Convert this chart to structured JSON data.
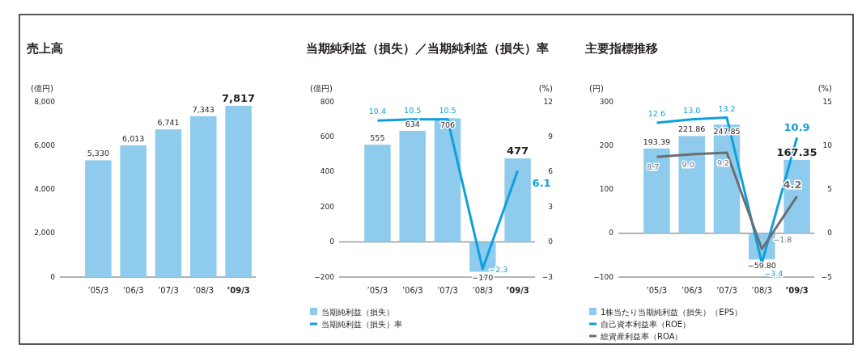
{
  "chart_data": [
    {
      "type": "bar",
      "title": "売上高",
      "ylabel": "(億円)",
      "categories": [
        "’05/3",
        "’06/3",
        "’07/3",
        "’08/3",
        "’09/3"
      ],
      "series": [
        {
          "color": "#8ecbed",
          "values": [
            5330,
            6013,
            6741,
            7343,
            7817
          ],
          "value_labels": [
            "5,330",
            "6,013",
            "6,741",
            "7,343",
            "7,817"
          ]
        }
      ],
      "ylim": [
        0,
        8000
      ],
      "yticks": [
        0,
        {
          "value": 2000,
          "label": "2,000"
        },
        {
          "value": 4000,
          "label": "4,000"
        },
        {
          "value": 6000,
          "label": "6,000"
        },
        {
          "value": 8000,
          "label": "8,000"
        }
      ],
      "grid": false,
      "legend": false
    },
    {
      "type": "bar",
      "title": "当期純利益（損失）／当期純利益（損失）率",
      "ylabel": "(億円)",
      "y2label": "(%)",
      "categories": [
        "’05/3",
        "’06/3",
        "’07/3",
        "’08/3",
        "’09/3"
      ],
      "series": [
        {
          "name": "当期純利益（損失）",
          "color": "#8ecbed",
          "values": [
            555,
            634,
            706,
            -170,
            477
          ],
          "value_labels": [
            "555",
            "634",
            "706",
            "−170",
            "477"
          ]
        },
        {
          "type": "line",
          "name": "当期純利益（損失）率",
          "color": "#0ea0dc",
          "axis": "y2",
          "values": [
            10.4,
            10.5,
            10.5,
            -2.3,
            6.1
          ],
          "value_labels": [
            "10.4",
            "10.5",
            "10.5",
            "−2.3",
            "6.1"
          ]
        }
      ],
      "ylim": [
        -200,
        800
      ],
      "yticks": [
        {
          "value": -200,
          "label": "−200"
        },
        0,
        200,
        400,
        600,
        800
      ],
      "y2lim": [
        -3,
        12
      ],
      "y2ticks": [
        {
          "value": -3,
          "label": "−3"
        },
        0,
        3,
        6,
        9,
        12
      ],
      "ref_lines": [
        {
          "axis": "y",
          "value": 0,
          "color": "#999999"
        }
      ],
      "grid": false,
      "legend": "bottom",
      "marker": "none",
      "line_style": "solid"
    },
    {
      "type": "bar",
      "title": "主要指標推移",
      "ylabel": "(円)",
      "y2label": "(%)",
      "categories": [
        "’05/3",
        "’06/3",
        "’07/3",
        "’08/3",
        "’09/3"
      ],
      "series": [
        {
          "name": "1株当たり当期純利益（損失）（EPS）",
          "color": "#8ecbed",
          "values": [
            193.39,
            221.86,
            247.85,
            -59.8,
            167.35
          ],
          "value_labels": [
            "193.39",
            "221.86",
            "247.85",
            "−59.80",
            "167.35"
          ]
        },
        {
          "type": "line",
          "name": "自己資本利益率（ROE）",
          "color": "#0ea0dc",
          "axis": "y2",
          "values": [
            12.6,
            13.0,
            13.2,
            -3.4,
            10.9
          ],
          "value_labels": [
            "12.6",
            "13.0",
            "13.2",
            "−3.4",
            "10.9"
          ]
        },
        {
          "type": "line",
          "name": "総資産利益率（ROA）",
          "color": "#6d6e70",
          "axis": "y2",
          "values": [
            8.7,
            9.0,
            9.2,
            -1.8,
            4.2
          ],
          "value_labels": [
            "8.7",
            "9.0",
            "9.2",
            "−1.8",
            "4.2"
          ]
        }
      ],
      "ylim": [
        -100,
        300
      ],
      "yticks": [
        {
          "value": -100,
          "label": "−100"
        },
        0,
        100,
        200,
        300
      ],
      "y2lim": [
        -5,
        15
      ],
      "y2ticks": [
        {
          "value": -5,
          "label": "−5"
        },
        0,
        5,
        10,
        15
      ],
      "ref_lines": [
        {
          "axis": "y",
          "value": 0,
          "color": "#999999"
        }
      ],
      "grid": false,
      "legend": "bottom",
      "marker": "none",
      "line_style": "solid"
    }
  ]
}
